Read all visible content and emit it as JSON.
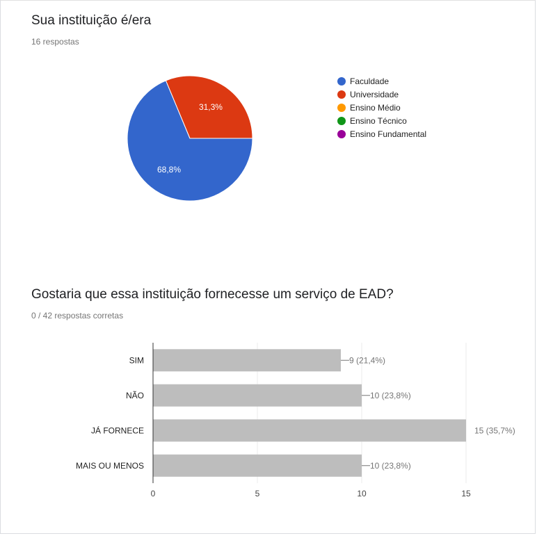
{
  "questions": [
    {
      "title": "Sua instituição é/era",
      "subtitle": "16 respostas"
    },
    {
      "title": "Gostaria que essa instituição fornecesse um serviço de EAD?",
      "subtitle": "0 / 42 respostas corretas"
    }
  ],
  "legend": [
    {
      "label": "Faculdade",
      "color": "#3366cc"
    },
    {
      "label": "Universidade",
      "color": "#dc3912"
    },
    {
      "label": "Ensino Médio",
      "color": "#ff9900"
    },
    {
      "label": "Ensino Técnico",
      "color": "#109618"
    },
    {
      "label": "Ensino Fundamental",
      "color": "#990099"
    }
  ],
  "chart_data": [
    {
      "type": "pie",
      "title": "Sua instituição é/era",
      "categories": [
        "Faculdade",
        "Universidade",
        "Ensino Médio",
        "Ensino Técnico",
        "Ensino Fundamental"
      ],
      "values": [
        68.8,
        31.3,
        0,
        0,
        0
      ],
      "slice_labels": [
        "68,8%",
        "31,3%",
        "",
        "",
        ""
      ],
      "colors": [
        "#3366cc",
        "#dc3912",
        "#ff9900",
        "#109618",
        "#990099"
      ],
      "legend_position": "right"
    },
    {
      "type": "bar",
      "orientation": "horizontal",
      "title": "Gostaria que essa instituição fornecesse um serviço de EAD?",
      "categories": [
        "SIM",
        "NÃO",
        "JÁ FORNECE",
        "MAIS OU MENOS"
      ],
      "values": [
        9,
        10,
        15,
        10
      ],
      "data_labels": [
        "9 (21,4%)",
        "10 (23,8%)",
        "15 (35,7%)",
        "10 (23,8%)"
      ],
      "xlim": [
        0,
        15
      ],
      "x_ticks": [
        0,
        5,
        10,
        15
      ],
      "x_tick_labels": [
        "0",
        "5",
        "10",
        "15"
      ],
      "bar_color": "#bdbdbd",
      "grid": true
    }
  ]
}
